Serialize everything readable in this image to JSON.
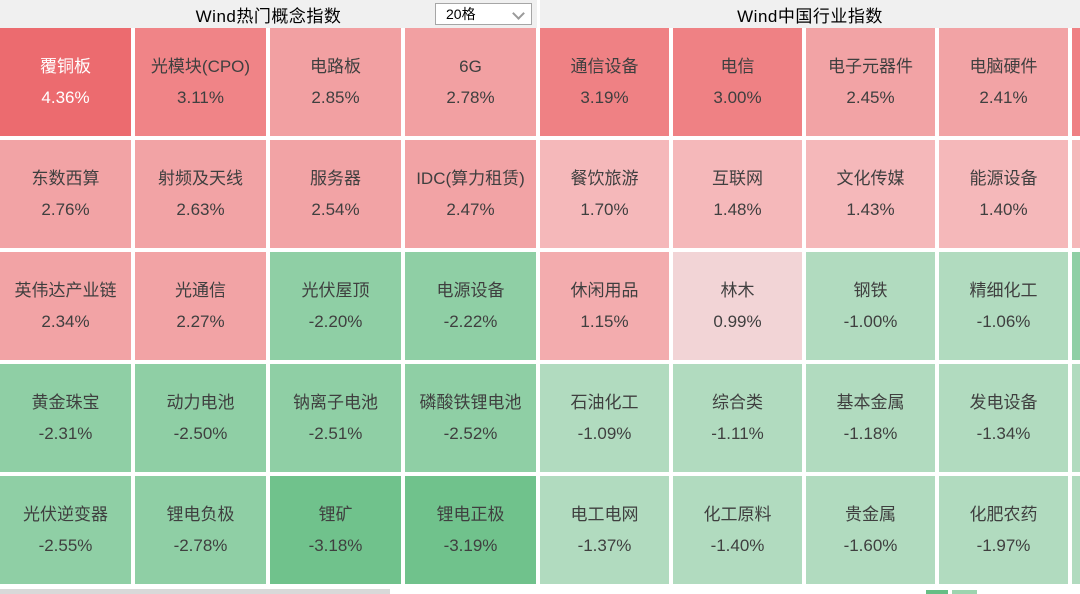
{
  "header": {
    "grid_size_selector": {
      "value": "20格"
    }
  },
  "colors": {
    "header_bg": "#f0f0f0",
    "gap": "#ffffff",
    "text_dark": "#3f3f3f",
    "text_light": "#ffffff",
    "scale_red_deep": "#ec6b6f",
    "scale_red": "#ef8184",
    "scale_red_mid": "#f2a3a5",
    "scale_pink": "#f5b8ba",
    "scale_pink_pale": "#f2d4d6",
    "scale_green_light": "#b1dbbf",
    "scale_green_mid": "#8fcfa5",
    "scale_green_deep": "#70c28c"
  },
  "chart_data": [
    {
      "type": "heatmap",
      "title": "Wind热门概念指数",
      "columns": 4,
      "rows": 5,
      "cells": [
        {
          "name": "覆铜板",
          "change": "4.36%",
          "value": 4.36,
          "bg": "#ec6b6f",
          "fg": "#ffffff"
        },
        {
          "name": "光模块(CPO)",
          "change": "3.11%",
          "value": 3.11,
          "bg": "#f08487",
          "fg": "#3f3f3f"
        },
        {
          "name": "电路板",
          "change": "2.85%",
          "value": 2.85,
          "bg": "#f2a0a2",
          "fg": "#3f3f3f"
        },
        {
          "name": "6G",
          "change": "2.78%",
          "value": 2.78,
          "bg": "#f2a0a2",
          "fg": "#3f3f3f"
        },
        {
          "name": "东数西算",
          "change": "2.76%",
          "value": 2.76,
          "bg": "#f2a3a5",
          "fg": "#3f3f3f"
        },
        {
          "name": "射频及天线",
          "change": "2.63%",
          "value": 2.63,
          "bg": "#f2a3a5",
          "fg": "#3f3f3f"
        },
        {
          "name": "服务器",
          "change": "2.54%",
          "value": 2.54,
          "bg": "#f2a3a5",
          "fg": "#3f3f3f"
        },
        {
          "name": "IDC(算力租赁)",
          "change": "2.47%",
          "value": 2.47,
          "bg": "#f2a3a5",
          "fg": "#3f3f3f"
        },
        {
          "name": "英伟达产业链",
          "change": "2.34%",
          "value": 2.34,
          "bg": "#f2a3a5",
          "fg": "#3f3f3f"
        },
        {
          "name": "光通信",
          "change": "2.27%",
          "value": 2.27,
          "bg": "#f2a3a5",
          "fg": "#3f3f3f"
        },
        {
          "name": "光伏屋顶",
          "change": "-2.20%",
          "value": -2.2,
          "bg": "#8fcfa5",
          "fg": "#3f3f3f"
        },
        {
          "name": "电源设备",
          "change": "-2.22%",
          "value": -2.22,
          "bg": "#8fcfa5",
          "fg": "#3f3f3f"
        },
        {
          "name": "黄金珠宝",
          "change": "-2.31%",
          "value": -2.31,
          "bg": "#8fcfa5",
          "fg": "#3f3f3f"
        },
        {
          "name": "动力电池",
          "change": "-2.50%",
          "value": -2.5,
          "bg": "#8fcfa5",
          "fg": "#3f3f3f"
        },
        {
          "name": "钠离子电池",
          "change": "-2.51%",
          "value": -2.51,
          "bg": "#8fcfa5",
          "fg": "#3f3f3f"
        },
        {
          "name": "磷酸铁锂电池",
          "change": "-2.52%",
          "value": -2.52,
          "bg": "#8fcfa5",
          "fg": "#3f3f3f"
        },
        {
          "name": "光伏逆变器",
          "change": "-2.55%",
          "value": -2.55,
          "bg": "#8fcfa5",
          "fg": "#3f3f3f"
        },
        {
          "name": "锂电负极",
          "change": "-2.78%",
          "value": -2.78,
          "bg": "#8fcfa5",
          "fg": "#3f3f3f"
        },
        {
          "name": "锂矿",
          "change": "-3.18%",
          "value": -3.18,
          "bg": "#70c28c",
          "fg": "#3f3f3f"
        },
        {
          "name": "锂电正极",
          "change": "-3.19%",
          "value": -3.19,
          "bg": "#70c28c",
          "fg": "#3f3f3f"
        }
      ]
    },
    {
      "type": "heatmap",
      "title": "Wind中国行业指数",
      "columns": 4,
      "rows": 5,
      "cells": [
        {
          "name": "通信设备",
          "change": "3.19%",
          "value": 3.19,
          "bg": "#ef8184",
          "fg": "#3f3f3f"
        },
        {
          "name": "电信",
          "change": "3.00%",
          "value": 3.0,
          "bg": "#ef8184",
          "fg": "#3f3f3f"
        },
        {
          "name": "电子元器件",
          "change": "2.45%",
          "value": 2.45,
          "bg": "#f2a3a5",
          "fg": "#3f3f3f"
        },
        {
          "name": "电脑硬件",
          "change": "2.41%",
          "value": 2.41,
          "bg": "#f2a3a5",
          "fg": "#3f3f3f"
        },
        {
          "name": "餐饮旅游",
          "change": "1.70%",
          "value": 1.7,
          "bg": "#f5b8ba",
          "fg": "#3f3f3f"
        },
        {
          "name": "互联网",
          "change": "1.48%",
          "value": 1.48,
          "bg": "#f5b8ba",
          "fg": "#3f3f3f"
        },
        {
          "name": "文化传媒",
          "change": "1.43%",
          "value": 1.43,
          "bg": "#f5b8ba",
          "fg": "#3f3f3f"
        },
        {
          "name": "能源设备",
          "change": "1.40%",
          "value": 1.4,
          "bg": "#f5b8ba",
          "fg": "#3f3f3f"
        },
        {
          "name": "休闲用品",
          "change": "1.15%",
          "value": 1.15,
          "bg": "#f3acae",
          "fg": "#3f3f3f"
        },
        {
          "name": "林木",
          "change": "0.99%",
          "value": 0.99,
          "bg": "#f2d4d6",
          "fg": "#3f3f3f"
        },
        {
          "name": "钢铁",
          "change": "-1.00%",
          "value": -1.0,
          "bg": "#b1dbbf",
          "fg": "#3f3f3f"
        },
        {
          "name": "精细化工",
          "change": "-1.06%",
          "value": -1.06,
          "bg": "#b1dbbf",
          "fg": "#3f3f3f"
        },
        {
          "name": "石油化工",
          "change": "-1.09%",
          "value": -1.09,
          "bg": "#b1dbbf",
          "fg": "#3f3f3f"
        },
        {
          "name": "综合类",
          "change": "-1.11%",
          "value": -1.11,
          "bg": "#b1dbbf",
          "fg": "#3f3f3f"
        },
        {
          "name": "基本金属",
          "change": "-1.18%",
          "value": -1.18,
          "bg": "#b1dbbf",
          "fg": "#3f3f3f"
        },
        {
          "name": "发电设备",
          "change": "-1.34%",
          "value": -1.34,
          "bg": "#b1dbbf",
          "fg": "#3f3f3f"
        },
        {
          "name": "电工电网",
          "change": "-1.37%",
          "value": -1.37,
          "bg": "#b1dbbf",
          "fg": "#3f3f3f"
        },
        {
          "name": "化工原料",
          "change": "-1.40%",
          "value": -1.4,
          "bg": "#b1dbbf",
          "fg": "#3f3f3f"
        },
        {
          "name": "贵金属",
          "change": "-1.60%",
          "value": -1.6,
          "bg": "#b1dbbf",
          "fg": "#3f3f3f"
        },
        {
          "name": "化肥农药",
          "change": "-1.97%",
          "value": -1.97,
          "bg": "#b1dbbf",
          "fg": "#3f3f3f"
        }
      ]
    }
  ],
  "right_edge_slivers": [
    "#ef8184",
    "#f5b8ba",
    "#8fcfa5",
    "#b1dbbf",
    "#b1dbbf"
  ],
  "bottom_slivers": [
    "#66be85",
    "#9dd4af"
  ]
}
